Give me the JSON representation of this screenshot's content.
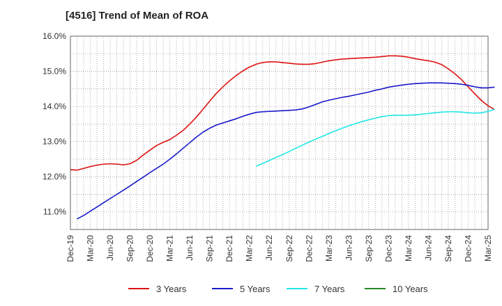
{
  "chart_data": {
    "type": "line",
    "title": "[4516]  Trend of Mean of ROA",
    "xlabel": "",
    "ylabel": "",
    "ylim": [
      10.5,
      16.0
    ],
    "yticks": [
      11.0,
      12.0,
      13.0,
      14.0,
      15.0,
      16.0
    ],
    "ytick_labels": [
      "11.0%",
      "12.0%",
      "13.0%",
      "14.0%",
      "15.0%",
      "16.0%"
    ],
    "xtick_labels": [
      "Dec-19",
      "Mar-20",
      "Jun-20",
      "Sep-20",
      "Dec-20",
      "Mar-21",
      "Jun-21",
      "Sep-21",
      "Dec-21",
      "Mar-22",
      "Jun-22",
      "Sep-22",
      "Dec-22",
      "Mar-23",
      "Jun-23",
      "Sep-23",
      "Dec-23",
      "Mar-24",
      "Jun-24",
      "Sep-24",
      "Dec-24",
      "Mar-25"
    ],
    "grid": true,
    "legend_position": "bottom",
    "x_unit": "month index from Dec-19 (0 = Dec-19)",
    "series": [
      {
        "name": "3 Years",
        "color": "#dd1111",
        "points": [
          [
            0,
            12.2
          ],
          [
            1,
            12.19
          ],
          [
            2,
            12.24
          ],
          [
            3,
            12.29
          ],
          [
            4,
            12.33
          ],
          [
            5,
            12.36
          ],
          [
            6,
            12.37
          ],
          [
            7,
            12.36
          ],
          [
            8,
            12.34
          ],
          [
            9,
            12.37
          ],
          [
            10,
            12.47
          ],
          [
            11,
            12.62
          ],
          [
            12,
            12.76
          ],
          [
            13,
            12.89
          ],
          [
            14,
            12.98
          ],
          [
            15,
            13.06
          ],
          [
            16,
            13.18
          ],
          [
            17,
            13.32
          ],
          [
            18,
            13.5
          ],
          [
            19,
            13.7
          ],
          [
            20,
            13.92
          ],
          [
            21,
            14.15
          ],
          [
            22,
            14.37
          ],
          [
            23,
            14.56
          ],
          [
            24,
            14.73
          ],
          [
            25,
            14.88
          ],
          [
            26,
            15.01
          ],
          [
            27,
            15.12
          ],
          [
            28,
            15.2
          ],
          [
            29,
            15.25
          ],
          [
            30,
            15.27
          ],
          [
            31,
            15.27
          ],
          [
            32,
            15.25
          ],
          [
            33,
            15.23
          ],
          [
            34,
            15.21
          ],
          [
            35,
            15.2
          ],
          [
            36,
            15.2
          ],
          [
            37,
            15.22
          ],
          [
            38,
            15.26
          ],
          [
            39,
            15.3
          ],
          [
            40,
            15.33
          ],
          [
            41,
            15.35
          ],
          [
            42,
            15.36
          ],
          [
            43,
            15.37
          ],
          [
            44,
            15.38
          ],
          [
            45,
            15.39
          ],
          [
            46,
            15.4
          ],
          [
            47,
            15.42
          ],
          [
            48,
            15.44
          ],
          [
            49,
            15.44
          ],
          [
            50,
            15.43
          ],
          [
            51,
            15.4
          ],
          [
            52,
            15.36
          ],
          [
            53,
            15.33
          ],
          [
            54,
            15.3
          ],
          [
            55,
            15.26
          ],
          [
            56,
            15.19
          ],
          [
            57,
            15.07
          ],
          [
            58,
            14.93
          ],
          [
            59,
            14.76
          ],
          [
            60,
            14.56
          ],
          [
            61,
            14.36
          ],
          [
            62,
            14.17
          ],
          [
            63,
            14.02
          ],
          [
            64,
            13.91
          ]
        ]
      },
      {
        "name": "5 Years",
        "color": "#1a1acc",
        "points": [
          [
            1,
            10.8
          ],
          [
            2,
            10.9
          ],
          [
            3,
            11.02
          ],
          [
            4,
            11.14
          ],
          [
            5,
            11.26
          ],
          [
            6,
            11.38
          ],
          [
            7,
            11.5
          ],
          [
            8,
            11.62
          ],
          [
            9,
            11.74
          ],
          [
            10,
            11.87
          ],
          [
            11,
            11.99
          ],
          [
            12,
            12.12
          ],
          [
            13,
            12.24
          ],
          [
            14,
            12.36
          ],
          [
            15,
            12.5
          ],
          [
            16,
            12.65
          ],
          [
            17,
            12.81
          ],
          [
            18,
            12.97
          ],
          [
            19,
            13.13
          ],
          [
            20,
            13.27
          ],
          [
            21,
            13.38
          ],
          [
            22,
            13.47
          ],
          [
            23,
            13.53
          ],
          [
            24,
            13.59
          ],
          [
            25,
            13.65
          ],
          [
            26,
            13.72
          ],
          [
            27,
            13.78
          ],
          [
            28,
            13.83
          ],
          [
            29,
            13.85
          ],
          [
            30,
            13.86
          ],
          [
            31,
            13.87
          ],
          [
            32,
            13.88
          ],
          [
            33,
            13.89
          ],
          [
            34,
            13.9
          ],
          [
            35,
            13.93
          ],
          [
            36,
            13.99
          ],
          [
            37,
            14.06
          ],
          [
            38,
            14.13
          ],
          [
            39,
            14.18
          ],
          [
            40,
            14.22
          ],
          [
            41,
            14.26
          ],
          [
            42,
            14.29
          ],
          [
            43,
            14.33
          ],
          [
            44,
            14.37
          ],
          [
            45,
            14.41
          ],
          [
            46,
            14.46
          ],
          [
            47,
            14.5
          ],
          [
            48,
            14.55
          ],
          [
            49,
            14.58
          ],
          [
            50,
            14.61
          ],
          [
            51,
            14.63
          ],
          [
            52,
            14.65
          ],
          [
            53,
            14.66
          ],
          [
            54,
            14.67
          ],
          [
            55,
            14.67
          ],
          [
            56,
            14.67
          ],
          [
            57,
            14.66
          ],
          [
            58,
            14.65
          ],
          [
            59,
            14.63
          ],
          [
            60,
            14.6
          ],
          [
            61,
            14.56
          ],
          [
            62,
            14.53
          ],
          [
            63,
            14.53
          ],
          [
            64,
            14.55
          ]
        ]
      },
      {
        "name": "7 Years",
        "color": "#22e6e6",
        "points": [
          [
            28,
            12.3
          ],
          [
            29,
            12.38
          ],
          [
            30,
            12.46
          ],
          [
            31,
            12.55
          ],
          [
            32,
            12.63
          ],
          [
            33,
            12.72
          ],
          [
            34,
            12.81
          ],
          [
            35,
            12.9
          ],
          [
            36,
            12.99
          ],
          [
            37,
            13.07
          ],
          [
            38,
            13.15
          ],
          [
            39,
            13.23
          ],
          [
            40,
            13.31
          ],
          [
            41,
            13.38
          ],
          [
            42,
            13.45
          ],
          [
            43,
            13.51
          ],
          [
            44,
            13.57
          ],
          [
            45,
            13.62
          ],
          [
            46,
            13.67
          ],
          [
            47,
            13.71
          ],
          [
            48,
            13.74
          ],
          [
            49,
            13.75
          ],
          [
            50,
            13.75
          ],
          [
            51,
            13.75
          ],
          [
            52,
            13.76
          ],
          [
            53,
            13.78
          ],
          [
            54,
            13.8
          ],
          [
            55,
            13.82
          ],
          [
            56,
            13.84
          ],
          [
            57,
            13.85
          ],
          [
            58,
            13.85
          ],
          [
            59,
            13.84
          ],
          [
            60,
            13.82
          ],
          [
            61,
            13.81
          ],
          [
            62,
            13.82
          ],
          [
            63,
            13.86
          ],
          [
            64,
            13.92
          ]
        ]
      },
      {
        "name": "10 Years",
        "color": "#228822",
        "points": []
      }
    ]
  }
}
